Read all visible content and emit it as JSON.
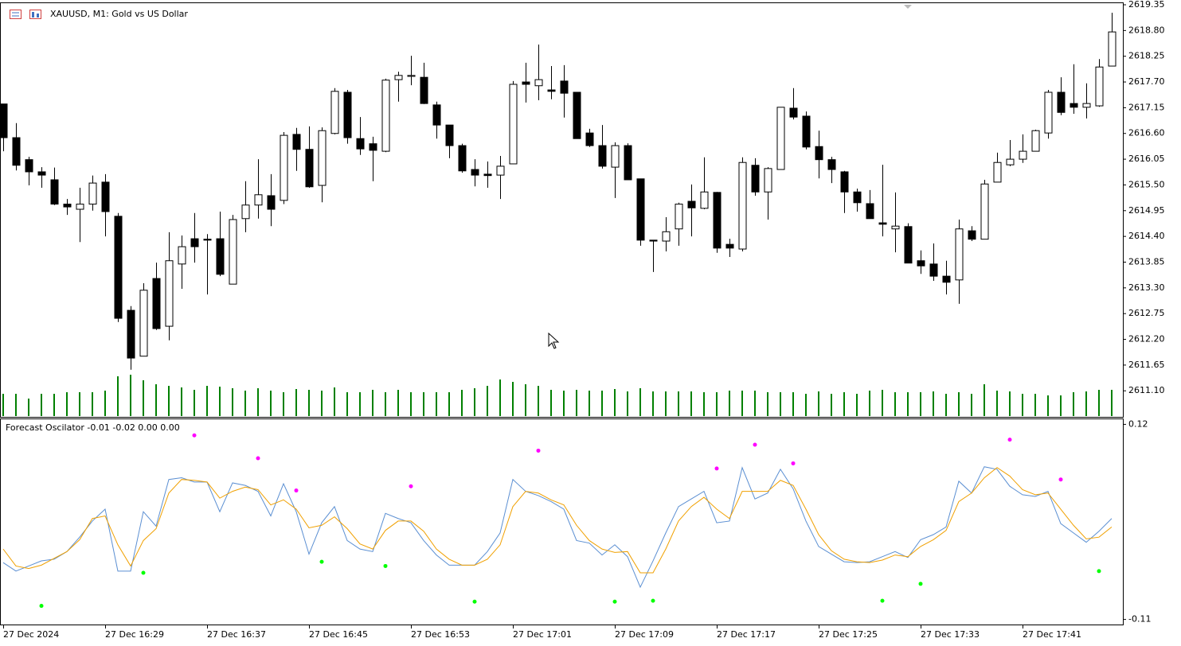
{
  "chart_data": [
    {
      "type": "candlestick",
      "title": "XAUUSD, M1:  Gold vs US Dollar",
      "categories": [
        "27 Dec 2024",
        null,
        null,
        null,
        null,
        null,
        null,
        null,
        "27 Dec 16:29",
        null,
        null,
        null,
        null,
        null,
        null,
        null,
        "27 Dec 16:37",
        null,
        null,
        null,
        null,
        null,
        null,
        null,
        "27 Dec 16:45",
        null,
        null,
        null,
        null,
        null,
        null,
        null,
        "27 Dec 16:53",
        null,
        null,
        null,
        null,
        null,
        null,
        null,
        "27 Dec 17:01",
        null,
        null,
        null,
        null,
        null,
        null,
        null,
        "27 Dec 17:09",
        null,
        null,
        null,
        null,
        null,
        null,
        null,
        "27 Dec 17:17",
        null,
        null,
        null,
        null,
        null,
        null,
        null,
        "27 Dec 17:25",
        null,
        null,
        null,
        null,
        null,
        null,
        null,
        "27 Dec 17:33",
        null,
        null,
        null,
        null,
        null,
        null,
        null,
        "27 Dec 17:41",
        null,
        null,
        null,
        null,
        null,
        null,
        null
      ],
      "open": [
        2617.23,
        2616.51,
        2616.04,
        2615.78,
        2615.61,
        2615.09,
        2614.98,
        2615.09,
        2615.56,
        2614.83,
        2612.82,
        2611.84,
        2613.5,
        2612.48,
        2613.81,
        2614.35,
        2614.34,
        2614.35,
        2613.38,
        2614.78,
        2615.07,
        2615.27,
        2615.17,
        2616.58,
        2616.26,
        2615.49,
        2616.6,
        2617.48,
        2616.49,
        2616.38,
        2616.22,
        2617.75,
        2617.82,
        2617.8,
        2617.21,
        2616.78,
        2616.34,
        2615.83,
        2615.73,
        2615.71,
        2615.95,
        2617.7,
        2617.62,
        2617.53,
        2617.72,
        2617.48,
        2616.61,
        2616.34,
        2615.88,
        2616.34,
        2615.63,
        2614.32,
        2614.3,
        2614.56,
        2615.15,
        2615.0,
        2615.34,
        2614.23,
        2614.13,
        2615.92,
        2615.35,
        2615.83,
        2617.14,
        2616.97,
        2616.32,
        2616.04,
        2615.78,
        2615.35,
        2615.1,
        2614.69,
        2614.56,
        2614.61,
        2613.88,
        2613.81,
        2613.55,
        2613.47,
        2614.52,
        2614.34,
        2615.56,
        2615.93,
        2616.05,
        2616.22,
        2616.61,
        2617.48,
        2617.24,
        2617.16,
        2617.19,
        2618.04
      ],
      "high": [
        2617.23,
        2616.82,
        2616.1,
        2615.88,
        2615.87,
        2615.2,
        2615.44,
        2615.7,
        2615.73,
        2614.9,
        2612.91,
        2613.4,
        2613.84,
        2614.49,
        2614.42,
        2614.9,
        2614.45,
        2614.93,
        2614.86,
        2615.58,
        2616.05,
        2615.73,
        2616.63,
        2616.72,
        2616.75,
        2616.73,
        2617.57,
        2617.53,
        2616.95,
        2616.53,
        2617.77,
        2617.92,
        2618.26,
        2618.11,
        2617.28,
        2616.78,
        2616.38,
        2616.05,
        2616.0,
        2616.12,
        2617.72,
        2618.11,
        2618.5,
        2618.04,
        2618.06,
        2617.48,
        2616.7,
        2616.78,
        2616.41,
        2616.39,
        2615.63,
        2614.32,
        2614.81,
        2615.12,
        2615.51,
        2616.09,
        2615.35,
        2614.35,
        2616.09,
        2616.07,
        2615.88,
        2617.16,
        2617.57,
        2617.07,
        2616.66,
        2616.1,
        2615.8,
        2615.42,
        2615.39,
        2615.93,
        2615.34,
        2614.68,
        2614.1,
        2614.25,
        2613.88,
        2614.76,
        2614.62,
        2615.61,
        2616.19,
        2616.46,
        2616.58,
        2616.68,
        2617.53,
        2617.8,
        2618.08,
        2617.67,
        2618.19,
        2619.18
      ],
      "low": [
        2616.22,
        2615.81,
        2615.49,
        2615.44,
        2615.07,
        2614.86,
        2614.28,
        2614.95,
        2614.4,
        2612.57,
        2611.55,
        2611.84,
        2612.4,
        2612.18,
        2613.28,
        2613.84,
        2613.16,
        2613.55,
        2613.38,
        2614.49,
        2614.78,
        2614.62,
        2615.09,
        2615.8,
        2615.44,
        2615.13,
        2616.58,
        2616.38,
        2616.14,
        2615.58,
        2616.2,
        2617.28,
        2617.63,
        2617.23,
        2616.49,
        2616.07,
        2615.76,
        2615.47,
        2615.44,
        2615.2,
        2615.95,
        2617.26,
        2617.31,
        2617.33,
        2616.94,
        2616.49,
        2616.31,
        2615.85,
        2615.22,
        2615.61,
        2614.2,
        2613.64,
        2614.08,
        2614.2,
        2614.4,
        2614.98,
        2614.05,
        2613.96,
        2614.08,
        2615.27,
        2614.76,
        2615.83,
        2616.9,
        2616.26,
        2615.64,
        2615.54,
        2614.9,
        2614.93,
        2614.78,
        2614.4,
        2614.06,
        2613.83,
        2613.6,
        2613.45,
        2613.16,
        2612.96,
        2614.3,
        2614.34,
        2615.56,
        2615.9,
        2615.97,
        2616.22,
        2616.49,
        2616.99,
        2617.02,
        2616.92,
        2617.17,
        2618.04
      ],
      "close": [
        2616.51,
        2615.92,
        2615.78,
        2615.71,
        2615.09,
        2615.03,
        2615.09,
        2615.54,
        2614.93,
        2612.65,
        2611.8,
        2613.25,
        2612.43,
        2613.88,
        2614.18,
        2614.18,
        2614.32,
        2613.59,
        2614.76,
        2615.07,
        2615.29,
        2614.98,
        2616.56,
        2616.26,
        2615.46,
        2616.66,
        2617.5,
        2616.51,
        2616.27,
        2616.24,
        2617.74,
        2617.84,
        2617.84,
        2617.24,
        2616.78,
        2616.34,
        2615.8,
        2615.71,
        2615.7,
        2615.9,
        2617.65,
        2617.65,
        2617.75,
        2617.5,
        2617.46,
        2616.49,
        2616.34,
        2615.9,
        2616.34,
        2615.61,
        2614.32,
        2614.3,
        2614.5,
        2615.09,
        2615.01,
        2615.35,
        2614.15,
        2614.15,
        2615.98,
        2615.35,
        2615.85,
        2617.16,
        2616.95,
        2616.31,
        2616.04,
        2615.83,
        2615.35,
        2615.12,
        2614.78,
        2614.66,
        2614.62,
        2613.83,
        2613.77,
        2613.55,
        2613.42,
        2614.56,
        2614.34,
        2615.52,
        2615.98,
        2616.05,
        2616.22,
        2616.66,
        2617.48,
        2617.05,
        2617.16,
        2617.24,
        2618.02,
        2618.77
      ],
      "volume": [
        28,
        28,
        22,
        28,
        28,
        30,
        30,
        30,
        32,
        50,
        52,
        45,
        40,
        38,
        36,
        33,
        38,
        37,
        35,
        32,
        35,
        32,
        30,
        34,
        33,
        32,
        36,
        30,
        30,
        33,
        30,
        33,
        30,
        30,
        30,
        30,
        33,
        35,
        38,
        46,
        43,
        40,
        38,
        33,
        32,
        33,
        32,
        32,
        34,
        31,
        35,
        31,
        31,
        31,
        31,
        30,
        30,
        32,
        32,
        32,
        30,
        30,
        30,
        28,
        31,
        28,
        30,
        28,
        32,
        33,
        30,
        30,
        30,
        31,
        28,
        30,
        28,
        40,
        32,
        31,
        28,
        28,
        26,
        26,
        30,
        31,
        33,
        33
      ],
      "up_color": "#ffffff",
      "down_color": "#000000",
      "volume_color": "#008000",
      "ylim": [
        2610.56,
        2619.35
      ],
      "yticks": [
        2619.35,
        {
          "value": 2618.8,
          "label": "2618.80"
        },
        2618.25,
        {
          "value": 2617.7,
          "label": "2617.70"
        },
        2617.15,
        {
          "value": 2616.6,
          "label": "2616.60"
        },
        2616.05,
        {
          "value": 2615.5,
          "label": "2615.50"
        },
        2614.95,
        {
          "value": 2614.4,
          "label": "2614.40"
        },
        2613.85,
        {
          "value": 2613.3,
          "label": "2613.30"
        },
        2612.75,
        {
          "value": 2612.2,
          "label": "2612.20"
        },
        2611.65,
        {
          "value": 2611.1,
          "label": "2611.10"
        }
      ]
    },
    {
      "type": "line",
      "title": "Forecast Oscilator -0.01 -0.02 0.00 0.00",
      "ylim": [
        -0.116,
        0.126
      ],
      "yticks": [
        0.12,
        -0.11
      ],
      "series": [
        {
          "color": "#5b8fd2",
          "style": "line",
          "values": [
            -0.043,
            -0.053,
            -0.047,
            -0.041,
            -0.039,
            -0.03,
            -0.013,
            0.006,
            0.02,
            -0.053,
            -0.053,
            0.017,
            0.0,
            0.055,
            0.057,
            0.052,
            0.052,
            0.017,
            0.051,
            0.048,
            0.041,
            0.012,
            0.05,
            0.017,
            -0.033,
            0.004,
            0.023,
            -0.017,
            -0.027,
            -0.03,
            0.015,
            0.009,
            0.004,
            -0.017,
            -0.034,
            -0.046,
            -0.046,
            -0.046,
            -0.03,
            -0.008,
            0.055,
            0.041,
            0.036,
            0.029,
            0.02,
            -0.017,
            -0.02,
            -0.034,
            -0.022,
            -0.036,
            -0.072,
            -0.041,
            -0.008,
            0.023,
            0.032,
            0.041,
            0.004,
            0.006,
            0.069,
            0.032,
            0.039,
            0.067,
            0.044,
            0.006,
            -0.024,
            -0.033,
            -0.042,
            -0.043,
            -0.042,
            -0.036,
            -0.03,
            -0.037,
            -0.016,
            -0.01,
            -0.001,
            0.053,
            0.039,
            0.07,
            0.067,
            0.047,
            0.037,
            0.035,
            0.041,
            0.003,
            -0.008,
            -0.019,
            -0.006,
            0.009
          ]
        },
        {
          "color": "#f0a000",
          "style": "line",
          "values": [
            -0.027,
            -0.047,
            -0.05,
            -0.046,
            -0.038,
            -0.03,
            -0.016,
            0.009,
            0.012,
            -0.022,
            -0.047,
            -0.017,
            -0.003,
            0.039,
            0.055,
            0.054,
            0.052,
            0.033,
            0.041,
            0.046,
            0.043,
            0.025,
            0.031,
            0.02,
            -0.002,
            0.001,
            0.011,
            -0.003,
            -0.021,
            -0.027,
            -0.005,
            0.006,
            0.006,
            -0.006,
            -0.027,
            -0.039,
            -0.046,
            -0.046,
            -0.039,
            -0.022,
            0.023,
            0.041,
            0.039,
            0.031,
            0.025,
            0.001,
            -0.017,
            -0.027,
            -0.031,
            -0.03,
            -0.055,
            -0.055,
            -0.027,
            0.006,
            0.023,
            0.034,
            0.02,
            0.009,
            0.041,
            0.041,
            0.041,
            0.054,
            0.048,
            0.02,
            -0.01,
            -0.029,
            -0.039,
            -0.042,
            -0.043,
            -0.04,
            -0.034,
            -0.036,
            -0.024,
            -0.016,
            -0.005,
            0.029,
            0.039,
            0.057,
            0.069,
            0.059,
            0.043,
            0.037,
            0.039,
            0.02,
            0.001,
            -0.015,
            -0.013,
            -0.001
          ]
        },
        {
          "color": "#ff00ff",
          "style": "dots",
          "values": [
            null,
            null,
            null,
            null,
            null,
            null,
            null,
            null,
            null,
            null,
            null,
            null,
            null,
            null,
            null,
            0.107,
            null,
            null,
            null,
            null,
            0.08,
            null,
            null,
            0.042,
            null,
            null,
            null,
            null,
            null,
            null,
            null,
            null,
            0.047,
            null,
            null,
            null,
            null,
            null,
            null,
            null,
            null,
            null,
            0.089,
            null,
            null,
            null,
            null,
            null,
            null,
            null,
            null,
            null,
            null,
            null,
            null,
            null,
            0.068,
            null,
            null,
            0.096,
            null,
            null,
            0.074,
            null,
            null,
            null,
            null,
            null,
            null,
            null,
            null,
            null,
            null,
            null,
            null,
            null,
            null,
            null,
            null,
            0.102,
            null,
            null,
            null,
            0.055,
            null,
            null,
            null,
            null
          ]
        },
        {
          "color": "#00ff00",
          "style": "dots",
          "values": [
            null,
            null,
            null,
            -0.094,
            null,
            null,
            null,
            null,
            null,
            null,
            null,
            -0.055,
            null,
            null,
            null,
            null,
            null,
            null,
            null,
            null,
            null,
            null,
            null,
            null,
            null,
            -0.042,
            null,
            null,
            null,
            null,
            -0.047,
            null,
            null,
            null,
            null,
            null,
            null,
            -0.089,
            null,
            null,
            null,
            null,
            null,
            null,
            null,
            null,
            null,
            null,
            -0.089,
            null,
            null,
            -0.088,
            null,
            null,
            null,
            null,
            null,
            null,
            null,
            null,
            null,
            null,
            null,
            null,
            null,
            null,
            null,
            null,
            null,
            -0.088,
            null,
            null,
            -0.068,
            null,
            null,
            null,
            null,
            null,
            null,
            null,
            null,
            null,
            null,
            null,
            null,
            null,
            -0.053,
            null
          ]
        }
      ]
    }
  ]
}
